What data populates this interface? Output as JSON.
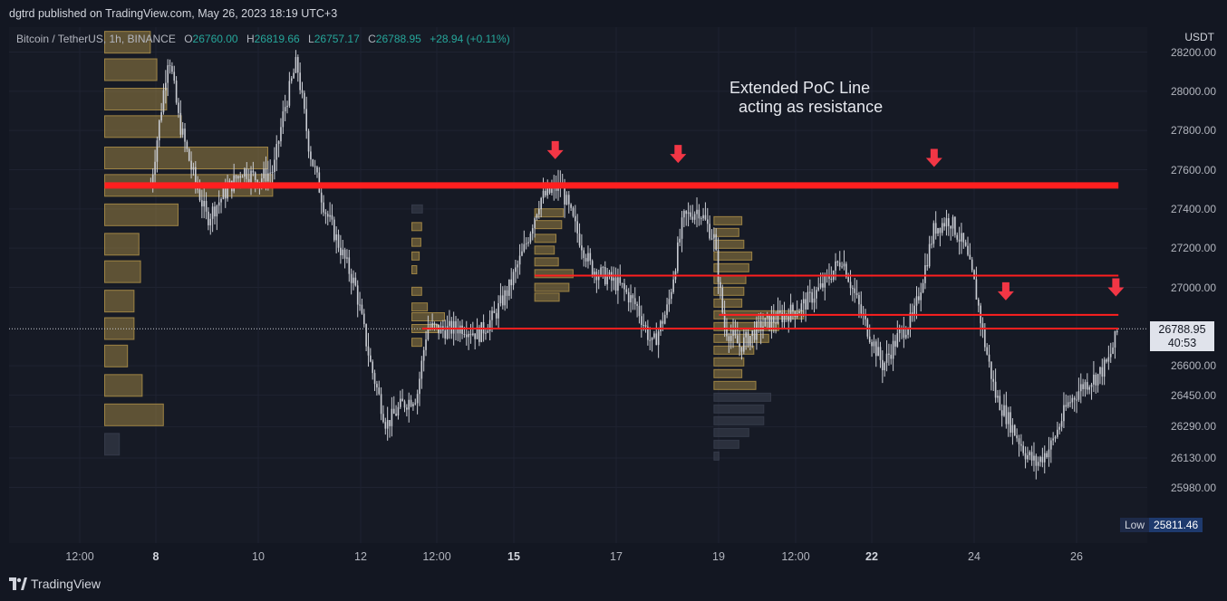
{
  "header": {
    "published_text": "dgtrd published on TradingView.com, May 26, 2023 18:19 UTC+3"
  },
  "legend": {
    "symbol": "Bitcoin / TetherUS, 1h, BINANCE",
    "o_label": "O",
    "o_value": "26760.00",
    "h_label": "H",
    "h_value": "26819.66",
    "l_label": "L",
    "l_value": "26757.17",
    "c_label": "C",
    "c_value": "26788.95",
    "change": "+28.94 (+0.11%)"
  },
  "annotation": {
    "line1": "Extended PoC Line",
    "line2": "acting as resistance"
  },
  "price_axis": {
    "currency": "USDT",
    "current_price": "26788.95",
    "countdown": "40:53",
    "low_label": "Low",
    "low_value": "25811.46"
  },
  "footer": {
    "brand": "TradingView"
  },
  "colors": {
    "background": "#161a25",
    "grid": "#1f2331",
    "candle": "#c9ccd3",
    "poc_line": "#ff1f1f",
    "arrow": "#f23645",
    "volume_profile": "#b5964a",
    "volume_profile_dim": "#3a3f4f"
  },
  "chart_data": {
    "type": "candlestick",
    "symbol": "Bitcoin / TetherUS",
    "interval": "1h",
    "exchange": "BINANCE",
    "y_ticks": [
      28200,
      28000,
      27800,
      27600,
      27400,
      27200,
      27000,
      26600,
      26450,
      26290,
      26130,
      25980
    ],
    "y_tick_labels": [
      "28200.00",
      "28000.00",
      "27800.00",
      "27600.00",
      "27400.00",
      "27200.00",
      "27000.00",
      "26600.00",
      "26450.00",
      "26290.00",
      "26130.00",
      "25980.00"
    ],
    "x_ticks": [
      {
        "label": "12:00",
        "bold": false
      },
      {
        "label": "8",
        "bold": true
      },
      {
        "label": "10",
        "bold": false
      },
      {
        "label": "12",
        "bold": false
      },
      {
        "label": "12:00",
        "bold": false
      },
      {
        "label": "15",
        "bold": true
      },
      {
        "label": "17",
        "bold": false
      },
      {
        "label": "19",
        "bold": false
      },
      {
        "label": "12:00",
        "bold": false
      },
      {
        "label": "22",
        "bold": true
      },
      {
        "label": "24",
        "bold": false
      },
      {
        "label": "26",
        "bold": false
      }
    ],
    "last_price": 26788.95,
    "low": 25811.46,
    "price_path": [
      [
        7.9,
        27520
      ],
      [
        8.1,
        27900
      ],
      [
        8.25,
        28200
      ],
      [
        8.45,
        27850
      ],
      [
        8.7,
        27600
      ],
      [
        9.0,
        27350
      ],
      [
        9.4,
        27500
      ],
      [
        9.7,
        27600
      ],
      [
        10.0,
        27550
      ],
      [
        10.3,
        27600
      ],
      [
        10.5,
        27900
      ],
      [
        10.75,
        28150
      ],
      [
        11.0,
        27700
      ],
      [
        11.3,
        27400
      ],
      [
        11.6,
        27200
      ],
      [
        11.9,
        27000
      ],
      [
        12.2,
        26600
      ],
      [
        12.5,
        26300
      ],
      [
        12.8,
        26400
      ],
      [
        13.1,
        26450
      ],
      [
        13.3,
        26800
      ],
      [
        13.6,
        26780
      ],
      [
        14.0,
        26800
      ],
      [
        14.3,
        26760
      ],
      [
        14.6,
        26850
      ],
      [
        14.9,
        27000
      ],
      [
        15.2,
        27200
      ],
      [
        15.5,
        27450
      ],
      [
        15.9,
        27520
      ],
      [
        16.2,
        27300
      ],
      [
        16.5,
        27100
      ],
      [
        16.8,
        27050
      ],
      [
        17.1,
        27000
      ],
      [
        17.4,
        26900
      ],
      [
        17.7,
        26700
      ],
      [
        18.0,
        26900
      ],
      [
        18.3,
        27350
      ],
      [
        18.6,
        27400
      ],
      [
        18.9,
        27250
      ],
      [
        19.1,
        26800
      ],
      [
        19.4,
        26700
      ],
      [
        19.8,
        26800
      ],
      [
        20.2,
        26850
      ],
      [
        20.6,
        26900
      ],
      [
        21.0,
        27000
      ],
      [
        21.4,
        27150
      ],
      [
        21.8,
        26850
      ],
      [
        22.2,
        26600
      ],
      [
        22.5,
        26750
      ],
      [
        22.8,
        26850
      ],
      [
        23.2,
        27300
      ],
      [
        23.5,
        27350
      ],
      [
        23.8,
        27200
      ],
      [
        24.0,
        27000
      ],
      [
        24.2,
        26700
      ],
      [
        24.4,
        26450
      ],
      [
        24.7,
        26300
      ],
      [
        25.0,
        26150
      ],
      [
        25.2,
        26100
      ],
      [
        25.5,
        26200
      ],
      [
        25.8,
        26400
      ],
      [
        26.1,
        26500
      ],
      [
        26.4,
        26550
      ],
      [
        26.6,
        26620
      ],
      [
        26.8,
        26789
      ]
    ],
    "lines": [
      {
        "name": "Extended PoC Line",
        "price": 27520,
        "from_x": 7.0,
        "to_x": 26.8,
        "weight": "thick"
      },
      {
        "name": "PoC",
        "price": 27060,
        "from_x": 15.4,
        "to_x": 26.8,
        "weight": "thin"
      },
      {
        "name": "PoC",
        "price": 26860,
        "from_x": 19.0,
        "to_x": 26.8,
        "weight": "thin"
      },
      {
        "name": "PoC",
        "price": 26790,
        "from_x": 13.2,
        "to_x": 26.8,
        "weight": "thin"
      }
    ],
    "arrows": [
      {
        "x": 15.8,
        "price": 27700
      },
      {
        "x": 18.2,
        "price": 27680
      },
      {
        "x": 23.2,
        "price": 27660
      },
      {
        "x": 24.6,
        "price": 26980
      },
      {
        "x": 26.75,
        "price": 27000
      }
    ],
    "volume_profiles": [
      {
        "x_start": 7.0,
        "bars": [
          {
            "price": 28250,
            "length": 0.28,
            "dim": false
          },
          {
            "price": 28110,
            "length": 0.32,
            "dim": false
          },
          {
            "price": 27960,
            "length": 0.38,
            "dim": false
          },
          {
            "price": 27820,
            "length": 0.47,
            "dim": false
          },
          {
            "price": 27660,
            "length": 1.0,
            "dim": false
          },
          {
            "price": 27520,
            "length": 1.03,
            "dim": false
          },
          {
            "price": 27370,
            "length": 0.45,
            "dim": false
          },
          {
            "price": 27220,
            "length": 0.21,
            "dim": false
          },
          {
            "price": 27080,
            "length": 0.22,
            "dim": false
          },
          {
            "price": 26930,
            "length": 0.18,
            "dim": false
          },
          {
            "price": 26790,
            "length": 0.18,
            "dim": false
          },
          {
            "price": 26650,
            "length": 0.14,
            "dim": false
          },
          {
            "price": 26500,
            "length": 0.23,
            "dim": false
          },
          {
            "price": 26350,
            "length": 0.36,
            "dim": false
          },
          {
            "price": 26200,
            "length": 0.09,
            "dim": true
          }
        ]
      },
      {
        "x_start": 13.0,
        "bars": [
          {
            "price": 27400,
            "length": 0.13,
            "dim": true
          },
          {
            "price": 27310,
            "length": 0.12,
            "dim": false
          },
          {
            "price": 27230,
            "length": 0.11,
            "dim": false
          },
          {
            "price": 27160,
            "length": 0.09,
            "dim": false
          },
          {
            "price": 27090,
            "length": 0.06,
            "dim": false
          },
          {
            "price": 26980,
            "length": 0.12,
            "dim": false
          },
          {
            "price": 26900,
            "length": 0.19,
            "dim": false
          },
          {
            "price": 26850,
            "length": 0.4,
            "dim": false
          },
          {
            "price": 26790,
            "length": 0.32,
            "dim": false
          },
          {
            "price": 26720,
            "length": 0.12,
            "dim": false
          }
        ]
      },
      {
        "x_start": 15.4,
        "bars": [
          {
            "price": 27380,
            "length": 0.35,
            "dim": false
          },
          {
            "price": 27320,
            "length": 0.33,
            "dim": false
          },
          {
            "price": 27250,
            "length": 0.26,
            "dim": false
          },
          {
            "price": 27190,
            "length": 0.24,
            "dim": false
          },
          {
            "price": 27130,
            "length": 0.29,
            "dim": false
          },
          {
            "price": 27070,
            "length": 0.47,
            "dim": false
          },
          {
            "price": 27000,
            "length": 0.42,
            "dim": false
          },
          {
            "price": 26950,
            "length": 0.3,
            "dim": false
          }
        ]
      },
      {
        "x_start": 18.9,
        "bars": [
          {
            "price": 27340,
            "length": 0.28,
            "dim": false
          },
          {
            "price": 27280,
            "length": 0.25,
            "dim": false
          },
          {
            "price": 27220,
            "length": 0.3,
            "dim": false
          },
          {
            "price": 27160,
            "length": 0.38,
            "dim": false
          },
          {
            "price": 27100,
            "length": 0.35,
            "dim": false
          },
          {
            "price": 27040,
            "length": 0.32,
            "dim": false
          },
          {
            "price": 26980,
            "length": 0.3,
            "dim": false
          },
          {
            "price": 26920,
            "length": 0.28,
            "dim": false
          },
          {
            "price": 26860,
            "length": 0.9,
            "dim": false
          },
          {
            "price": 26800,
            "length": 0.65,
            "dim": false
          },
          {
            "price": 26740,
            "length": 0.55,
            "dim": false
          },
          {
            "price": 26680,
            "length": 0.4,
            "dim": false
          },
          {
            "price": 26620,
            "length": 0.3,
            "dim": false
          },
          {
            "price": 26560,
            "length": 0.28,
            "dim": false
          },
          {
            "price": 26500,
            "length": 0.42,
            "dim": false
          },
          {
            "price": 26440,
            "length": 0.57,
            "dim": true
          },
          {
            "price": 26380,
            "length": 0.5,
            "dim": true
          },
          {
            "price": 26320,
            "length": 0.5,
            "dim": true
          },
          {
            "price": 26260,
            "length": 0.35,
            "dim": true
          },
          {
            "price": 26200,
            "length": 0.25,
            "dim": true
          },
          {
            "price": 26140,
            "length": 0.05,
            "dim": true
          }
        ]
      }
    ]
  }
}
